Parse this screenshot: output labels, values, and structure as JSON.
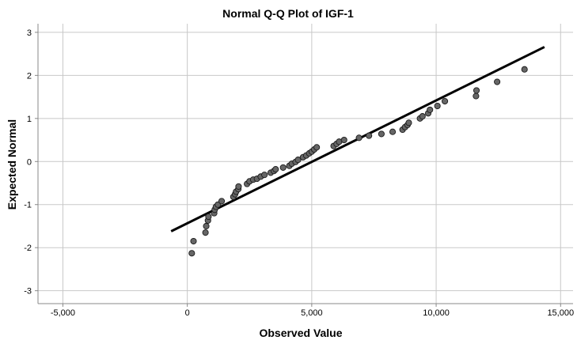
{
  "chart_data": {
    "type": "scatter",
    "title": "Normal Q-Q Plot of IGF-1",
    "xlabel": "Observed Value",
    "ylabel": "Expected Normal",
    "xlim": [
      -6000,
      15500
    ],
    "ylim": [
      -3.3,
      3.2
    ],
    "grid": true,
    "x_ticks": [
      -5000,
      0,
      5000,
      10000,
      15000
    ],
    "x_tick_labels": [
      "-5,000",
      "0",
      "5,000",
      "10,000",
      "15,000"
    ],
    "y_ticks": [
      -3,
      -2,
      -1,
      0,
      1,
      2,
      3
    ],
    "y_tick_labels": [
      "-3",
      "-2",
      "-1",
      "0",
      "1",
      "2",
      "3"
    ],
    "colors": {
      "points": "#666666",
      "point_outline": "#1a1a1a",
      "line": "#000000",
      "grid": "#c8c8c8",
      "axis": "#888888"
    },
    "reference_line": {
      "x": [
        -650,
        14350
      ],
      "y": [
        -1.62,
        2.66
      ]
    },
    "series": [
      {
        "points": [
          [
            180,
            -2.13
          ],
          [
            250,
            -1.85
          ],
          [
            730,
            -1.65
          ],
          [
            760,
            -1.5
          ],
          [
            830,
            -1.37
          ],
          [
            850,
            -1.28
          ],
          [
            1080,
            -1.2
          ],
          [
            1100,
            -1.12
          ],
          [
            1150,
            -1.05
          ],
          [
            1230,
            -1.0
          ],
          [
            1380,
            -0.92
          ],
          [
            1850,
            -0.82
          ],
          [
            1920,
            -0.76
          ],
          [
            1960,
            -0.7
          ],
          [
            2050,
            -0.64
          ],
          [
            2060,
            -0.58
          ],
          [
            2400,
            -0.52
          ],
          [
            2500,
            -0.46
          ],
          [
            2650,
            -0.42
          ],
          [
            2800,
            -0.4
          ],
          [
            2950,
            -0.35
          ],
          [
            3100,
            -0.31
          ],
          [
            3350,
            -0.26
          ],
          [
            3480,
            -0.22
          ],
          [
            3550,
            -0.18
          ],
          [
            3850,
            -0.14
          ],
          [
            4100,
            -0.1
          ],
          [
            4200,
            -0.05
          ],
          [
            4350,
            -0.01
          ],
          [
            4450,
            0.04
          ],
          [
            4650,
            0.1
          ],
          [
            4780,
            0.14
          ],
          [
            4900,
            0.19
          ],
          [
            5000,
            0.23
          ],
          [
            5100,
            0.28
          ],
          [
            5200,
            0.33
          ],
          [
            5880,
            0.36
          ],
          [
            6000,
            0.41
          ],
          [
            6100,
            0.46
          ],
          [
            6300,
            0.5
          ],
          [
            6900,
            0.55
          ],
          [
            7300,
            0.6
          ],
          [
            7800,
            0.64
          ],
          [
            8250,
            0.69
          ],
          [
            8650,
            0.74
          ],
          [
            8750,
            0.8
          ],
          [
            8850,
            0.85
          ],
          [
            8900,
            0.9
          ],
          [
            9350,
            1.0
          ],
          [
            9450,
            1.05
          ],
          [
            9680,
            1.12
          ],
          [
            9750,
            1.2
          ],
          [
            10050,
            1.29
          ],
          [
            10350,
            1.4
          ],
          [
            11600,
            1.52
          ],
          [
            11620,
            1.65
          ],
          [
            12450,
            1.85
          ],
          [
            13550,
            2.14
          ]
        ]
      }
    ]
  }
}
